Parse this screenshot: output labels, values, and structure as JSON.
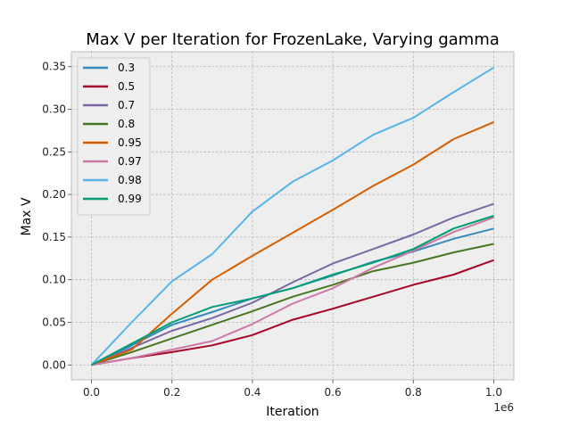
{
  "chart_data": {
    "type": "line",
    "title": "Max V per Iteration for FrozenLake, Varying gamma",
    "xlabel": "Iteration",
    "ylabel": "Max V",
    "x_offset_label": "1e6",
    "xlim": [
      -0.05,
      1.05
    ],
    "ylim": [
      -0.0175,
      0.3675
    ],
    "x_scale_factor": 1000000,
    "xticks": [
      0.0,
      0.2,
      0.4,
      0.6,
      0.8,
      1.0
    ],
    "xtick_labels": [
      "0.0",
      "0.2",
      "0.4",
      "0.6",
      "0.8",
      "1.0"
    ],
    "yticks": [
      0.0,
      0.05,
      0.1,
      0.15,
      0.2,
      0.25,
      0.3,
      0.35
    ],
    "ytick_labels": [
      "0.00",
      "0.05",
      "0.10",
      "0.15",
      "0.20",
      "0.25",
      "0.30",
      "0.35"
    ],
    "grid": true,
    "legend_position": "top-left",
    "x": [
      0,
      0.1,
      0.2,
      0.3,
      0.4,
      0.5,
      0.6,
      0.7,
      0.8,
      0.9,
      1.0
    ],
    "series": [
      {
        "name": "0.3",
        "color": "#348ABD",
        "values": [
          0,
          0.023,
          0.047,
          0.062,
          0.078,
          0.09,
          0.105,
          0.121,
          0.133,
          0.148,
          0.16
        ]
      },
      {
        "name": "0.5",
        "color": "#A60628",
        "values": [
          0,
          0.008,
          0.015,
          0.023,
          0.035,
          0.053,
          0.066,
          0.08,
          0.094,
          0.106,
          0.123
        ]
      },
      {
        "name": "0.7",
        "color": "#7A68A6",
        "values": [
          0,
          0.02,
          0.04,
          0.055,
          0.073,
          0.097,
          0.119,
          0.136,
          0.153,
          0.173,
          0.189
        ]
      },
      {
        "name": "0.8",
        "color": "#467821",
        "values": [
          0,
          0.015,
          0.031,
          0.047,
          0.063,
          0.08,
          0.094,
          0.11,
          0.12,
          0.132,
          0.142
        ]
      },
      {
        "name": "0.95",
        "color": "#D55E00",
        "values": [
          0,
          0.018,
          0.06,
          0.1,
          0.128,
          0.155,
          0.182,
          0.21,
          0.235,
          0.265,
          0.285
        ]
      },
      {
        "name": "0.97",
        "color": "#CC79A7",
        "values": [
          0,
          0.008,
          0.018,
          0.028,
          0.048,
          0.072,
          0.09,
          0.114,
          0.134,
          0.156,
          0.173
        ]
      },
      {
        "name": "0.98",
        "color": "#56B4E9",
        "values": [
          0,
          0.05,
          0.098,
          0.13,
          0.18,
          0.215,
          0.24,
          0.27,
          0.29,
          0.32,
          0.349
        ]
      },
      {
        "name": "0.99",
        "color": "#009E73",
        "values": [
          0,
          0.025,
          0.05,
          0.068,
          0.078,
          0.09,
          0.106,
          0.12,
          0.136,
          0.16,
          0.175
        ]
      }
    ]
  }
}
